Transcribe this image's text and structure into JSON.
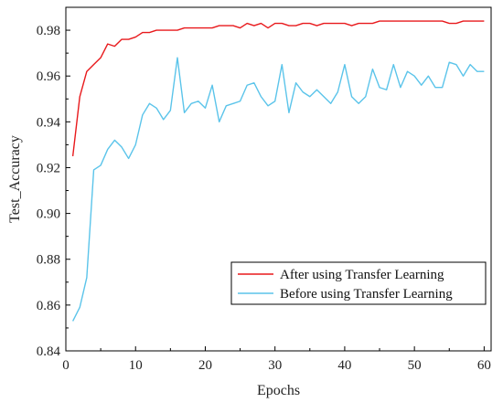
{
  "chart_data": {
    "type": "line",
    "xlabel": "Epochs",
    "ylabel": "Test_Accuracy",
    "xlim": [
      0,
      61
    ],
    "ylim": [
      0.84,
      0.99
    ],
    "xticks": [
      0,
      10,
      20,
      30,
      40,
      50,
      60
    ],
    "yticks": [
      0.84,
      0.86,
      0.88,
      0.9,
      0.92,
      0.94,
      0.96,
      0.98
    ],
    "ytick_labels": [
      "0.84",
      "0.86",
      "0.88",
      "0.90",
      "0.92",
      "0.94",
      "0.96",
      "0.98"
    ],
    "legend_position": "bottom-right",
    "grid": false,
    "x": [
      1,
      2,
      3,
      4,
      5,
      6,
      7,
      8,
      9,
      10,
      11,
      12,
      13,
      14,
      15,
      16,
      17,
      18,
      19,
      20,
      21,
      22,
      23,
      24,
      25,
      26,
      27,
      28,
      29,
      30,
      31,
      32,
      33,
      34,
      35,
      36,
      37,
      38,
      39,
      40,
      41,
      42,
      43,
      44,
      45,
      46,
      47,
      48,
      49,
      50,
      51,
      52,
      53,
      54,
      55,
      56,
      57,
      58,
      59,
      60
    ],
    "series": [
      {
        "name": "After using Transfer Learning",
        "color": "#e8191c",
        "values": [
          0.925,
          0.951,
          0.962,
          0.965,
          0.968,
          0.974,
          0.973,
          0.976,
          0.976,
          0.977,
          0.979,
          0.979,
          0.98,
          0.98,
          0.98,
          0.98,
          0.981,
          0.981,
          0.981,
          0.981,
          0.981,
          0.982,
          0.982,
          0.982,
          0.981,
          0.983,
          0.982,
          0.983,
          0.981,
          0.983,
          0.983,
          0.982,
          0.982,
          0.983,
          0.983,
          0.982,
          0.983,
          0.983,
          0.983,
          0.983,
          0.982,
          0.983,
          0.983,
          0.983,
          0.984,
          0.984,
          0.984,
          0.984,
          0.984,
          0.984,
          0.984,
          0.984,
          0.984,
          0.984,
          0.983,
          0.983,
          0.984,
          0.984,
          0.984,
          0.984
        ]
      },
      {
        "name": "Before using Transfer Learning",
        "color": "#5bc4ea",
        "values": [
          0.853,
          0.859,
          0.872,
          0.919,
          0.921,
          0.928,
          0.932,
          0.929,
          0.924,
          0.93,
          0.943,
          0.948,
          0.946,
          0.941,
          0.945,
          0.968,
          0.944,
          0.948,
          0.949,
          0.946,
          0.956,
          0.94,
          0.947,
          0.948,
          0.949,
          0.956,
          0.957,
          0.951,
          0.947,
          0.949,
          0.965,
          0.944,
          0.957,
          0.953,
          0.951,
          0.954,
          0.951,
          0.948,
          0.953,
          0.965,
          0.951,
          0.948,
          0.951,
          0.963,
          0.955,
          0.954,
          0.965,
          0.955,
          0.962,
          0.96,
          0.956,
          0.96,
          0.955,
          0.955,
          0.966,
          0.965,
          0.96,
          0.965,
          0.962,
          0.962
        ]
      }
    ]
  }
}
